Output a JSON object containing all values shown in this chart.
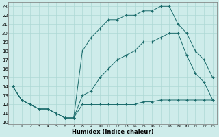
{
  "xlabel": "Humidex (Indice chaleur)",
  "bg_color": "#ceecea",
  "grid_color": "#aed8d5",
  "line_color": "#1a6b6b",
  "xlim": [
    -0.5,
    23.5
  ],
  "ylim": [
    9.8,
    23.5
  ],
  "xticks": [
    0,
    1,
    2,
    3,
    4,
    5,
    6,
    7,
    8,
    9,
    10,
    11,
    12,
    13,
    14,
    15,
    16,
    17,
    18,
    19,
    20,
    21,
    22,
    23
  ],
  "yticks": [
    10,
    11,
    12,
    13,
    14,
    15,
    16,
    17,
    18,
    19,
    20,
    21,
    22,
    23
  ],
  "line1_x": [
    0,
    1,
    2,
    3,
    4,
    5,
    6,
    7,
    8,
    9,
    10,
    11,
    12,
    13,
    14,
    15,
    16,
    17,
    18,
    19,
    20,
    21,
    22,
    23
  ],
  "line1_y": [
    14,
    12.5,
    12,
    11.5,
    11.5,
    11,
    10.5,
    10.5,
    12,
    12,
    12,
    12,
    12,
    12,
    12,
    12.3,
    12.3,
    12.5,
    12.5,
    12.5,
    12.5,
    12.5,
    12.5,
    12.5
  ],
  "line2_x": [
    0,
    1,
    2,
    3,
    4,
    5,
    6,
    7,
    8,
    9,
    10,
    11,
    12,
    13,
    14,
    15,
    16,
    17,
    18,
    19,
    20,
    21,
    22,
    23
  ],
  "line2_y": [
    14,
    12.5,
    12,
    11.5,
    11.5,
    11,
    10.5,
    10.5,
    13,
    13.5,
    15,
    16,
    17,
    17.5,
    18,
    19,
    19,
    19.5,
    20,
    20,
    17.5,
    15.5,
    14.5,
    12.5
  ],
  "line3_x": [
    0,
    1,
    2,
    3,
    4,
    5,
    6,
    7,
    8,
    9,
    10,
    11,
    12,
    13,
    14,
    15,
    16,
    17,
    18,
    19,
    20,
    21,
    22,
    23
  ],
  "line3_y": [
    14,
    12.5,
    12,
    11.5,
    11.5,
    11,
    10.5,
    10.5,
    18,
    19.5,
    20.5,
    21.5,
    21.5,
    22,
    22,
    22.5,
    22.5,
    23,
    23,
    21,
    20,
    18,
    17,
    15
  ]
}
